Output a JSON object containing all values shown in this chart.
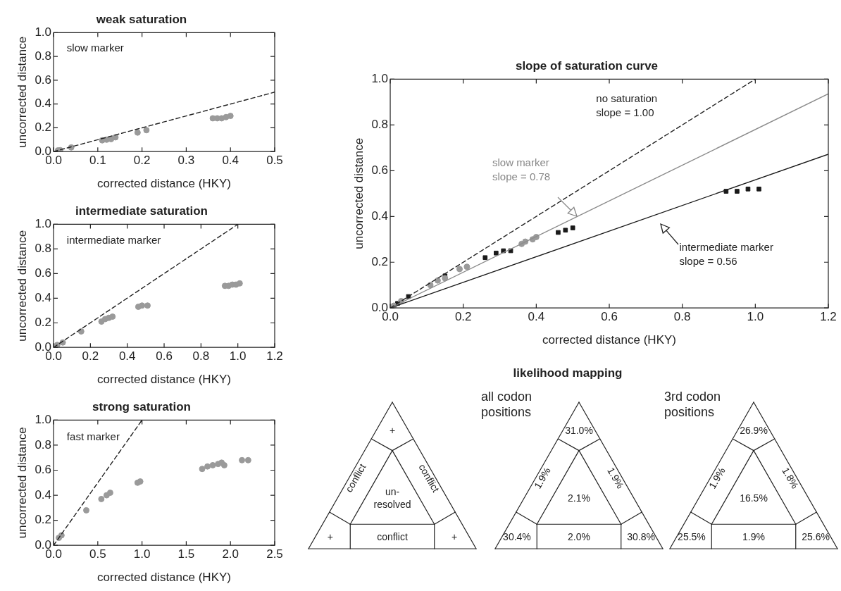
{
  "chart_data": [
    {
      "type": "scatter",
      "title": "weak saturation",
      "xlabel": "corrected distance (HKY)",
      "ylabel": "uncorrected distance",
      "xlim": [
        0,
        0.5
      ],
      "ylim": [
        0,
        1
      ],
      "xticks": [
        {
          "value": 0,
          "label": "0.0"
        },
        {
          "value": 0.1,
          "label": "0.1"
        },
        {
          "value": 0.2,
          "label": "0.2"
        },
        {
          "value": 0.3,
          "label": "0.3"
        },
        {
          "value": 0.4,
          "label": "0.4"
        },
        {
          "value": 0.5,
          "label": "0.5"
        }
      ],
      "yticks": [
        {
          "value": 0,
          "label": "0.0"
        },
        {
          "value": 0.2,
          "label": "0.2"
        },
        {
          "value": 0.4,
          "label": "0.4"
        },
        {
          "value": 0.6,
          "label": "0.6"
        },
        {
          "value": 0.8,
          "label": "0.8"
        },
        {
          "value": 1,
          "label": "1.0"
        }
      ],
      "series": [
        {
          "type": "line",
          "color": "#222222",
          "marker": "none",
          "line_style": "dashed",
          "x": [
            0,
            0.5
          ],
          "values": [
            0,
            0.5
          ]
        },
        {
          "type": "scatter",
          "color": "#9a9a9a",
          "marker": "circle",
          "x": [
            0.01,
            0.015,
            0.04,
            0.11,
            0.12,
            0.13,
            0.14,
            0.19,
            0.21,
            0.36,
            0.37,
            0.38,
            0.39,
            0.4
          ],
          "values": [
            0.01,
            0.012,
            0.035,
            0.095,
            0.1,
            0.105,
            0.12,
            0.16,
            0.18,
            0.28,
            0.28,
            0.28,
            0.29,
            0.3
          ]
        }
      ],
      "annotations": [
        "slow marker"
      ]
    },
    {
      "type": "scatter",
      "title": "intermediate saturation",
      "xlabel": "corrected distance (HKY)",
      "ylabel": "uncorrected distance",
      "xlim": [
        0,
        1.2
      ],
      "ylim": [
        0,
        1
      ],
      "xticks": [
        {
          "value": 0,
          "label": "0.0"
        },
        {
          "value": 0.2,
          "label": "0.2"
        },
        {
          "value": 0.4,
          "label": "0.4"
        },
        {
          "value": 0.6,
          "label": "0.6"
        },
        {
          "value": 0.8,
          "label": "0.8"
        },
        {
          "value": 1,
          "label": "1.0"
        },
        {
          "value": 1.2,
          "label": "1.2"
        }
      ],
      "yticks": [
        {
          "value": 0,
          "label": "0.0"
        },
        {
          "value": 0.2,
          "label": "0.2"
        },
        {
          "value": 0.4,
          "label": "0.4"
        },
        {
          "value": 0.6,
          "label": "0.6"
        },
        {
          "value": 0.8,
          "label": "0.8"
        },
        {
          "value": 1,
          "label": "1.0"
        }
      ],
      "series": [
        {
          "type": "line",
          "color": "#222222",
          "marker": "none",
          "line_style": "dashed",
          "x": [
            0,
            1
          ],
          "values": [
            0,
            1
          ]
        },
        {
          "type": "scatter",
          "color": "#9a9a9a",
          "marker": "circle",
          "x": [
            0.02,
            0.05,
            0.15,
            0.26,
            0.28,
            0.3,
            0.32,
            0.46,
            0.48,
            0.51,
            0.93,
            0.95,
            0.97,
            0.99,
            1.01
          ],
          "values": [
            0.02,
            0.04,
            0.13,
            0.21,
            0.23,
            0.24,
            0.25,
            0.33,
            0.34,
            0.34,
            0.5,
            0.5,
            0.51,
            0.51,
            0.52
          ]
        }
      ],
      "annotations": [
        "intermediate marker"
      ]
    },
    {
      "type": "scatter",
      "title": "strong saturation",
      "xlabel": "corrected distance (HKY)",
      "ylabel": "uncorrected distance",
      "xlim": [
        0,
        2.5
      ],
      "ylim": [
        0,
        1
      ],
      "xticks": [
        {
          "value": 0,
          "label": "0.0"
        },
        {
          "value": 0.5,
          "label": "0.5"
        },
        {
          "value": 1,
          "label": "1.0"
        },
        {
          "value": 1.5,
          "label": "1.5"
        },
        {
          "value": 2,
          "label": "2.0"
        },
        {
          "value": 2.5,
          "label": "2.5"
        }
      ],
      "yticks": [
        {
          "value": 0,
          "label": "0.0"
        },
        {
          "value": 0.2,
          "label": "0.2"
        },
        {
          "value": 0.4,
          "label": "0.4"
        },
        {
          "value": 0.6,
          "label": "0.6"
        },
        {
          "value": 0.8,
          "label": "0.8"
        },
        {
          "value": 1,
          "label": "1.0"
        }
      ],
      "series": [
        {
          "type": "line",
          "color": "#222222",
          "marker": "none",
          "line_style": "dashed",
          "x": [
            0,
            1
          ],
          "values": [
            0,
            1
          ]
        },
        {
          "type": "scatter",
          "color": "#9a9a9a",
          "marker": "circle",
          "x": [
            0.06,
            0.09,
            0.37,
            0.54,
            0.6,
            0.64,
            0.95,
            0.98,
            1.68,
            1.74,
            1.8,
            1.86,
            1.9,
            1.93,
            2.13,
            2.2
          ],
          "values": [
            0.06,
            0.08,
            0.28,
            0.37,
            0.4,
            0.42,
            0.5,
            0.51,
            0.61,
            0.63,
            0.64,
            0.65,
            0.66,
            0.64,
            0.68,
            0.68
          ]
        }
      ],
      "annotations": [
        "fast marker"
      ]
    },
    {
      "type": "scatter",
      "title": "slope of saturation curve",
      "xlabel": "corrected distance (HKY)",
      "ylabel": "uncorrected distance",
      "xlim": [
        0,
        1.2
      ],
      "ylim": [
        0,
        1
      ],
      "xticks": [
        {
          "value": 0,
          "label": "0.0"
        },
        {
          "value": 0.2,
          "label": "0.2"
        },
        {
          "value": 0.4,
          "label": "0.4"
        },
        {
          "value": 0.6,
          "label": "0.6"
        },
        {
          "value": 0.8,
          "label": "0.8"
        },
        {
          "value": 1,
          "label": "1.0"
        },
        {
          "value": 1.2,
          "label": "1.2"
        }
      ],
      "yticks": [
        {
          "value": 0,
          "label": "0.0"
        },
        {
          "value": 0.2,
          "label": "0.2"
        },
        {
          "value": 0.4,
          "label": "0.4"
        },
        {
          "value": 0.6,
          "label": "0.6"
        },
        {
          "value": 0.8,
          "label": "0.8"
        },
        {
          "value": 1,
          "label": "1.0"
        }
      ],
      "series": [
        {
          "type": "line",
          "color": "#222222",
          "marker": "none",
          "line_style": "dashed",
          "x": [
            0,
            1
          ],
          "values": [
            0,
            1
          ]
        },
        {
          "type": "line",
          "color": "#8c8c8c",
          "marker": "none",
          "line_style": "solid",
          "x": [
            0,
            1.2
          ],
          "values": [
            0,
            0.936
          ]
        },
        {
          "type": "line",
          "color": "#1a1a1a",
          "marker": "none",
          "line_style": "solid",
          "x": [
            0,
            1.2
          ],
          "values": [
            0,
            0.672
          ]
        },
        {
          "type": "scatter",
          "color": "#9a9a9a",
          "marker": "circle",
          "x": [
            0.01,
            0.03,
            0.11,
            0.13,
            0.15,
            0.19,
            0.21,
            0.36,
            0.37,
            0.39,
            0.4
          ],
          "values": [
            0.01,
            0.03,
            0.1,
            0.12,
            0.13,
            0.17,
            0.18,
            0.28,
            0.29,
            0.3,
            0.31
          ]
        },
        {
          "type": "scatter",
          "color": "#1a1a1a",
          "marker": "square",
          "x": [
            0.02,
            0.05,
            0.15,
            0.26,
            0.29,
            0.31,
            0.33,
            0.46,
            0.48,
            0.5,
            0.92,
            0.95,
            0.98,
            1.01
          ],
          "values": [
            0.02,
            0.05,
            0.14,
            0.22,
            0.24,
            0.25,
            0.25,
            0.33,
            0.34,
            0.35,
            0.51,
            0.51,
            0.52,
            0.52
          ]
        }
      ],
      "annotations": [
        "no saturation\nslope = 1.00",
        "slow marker\nslope = 0.78",
        "intermediate marker\nslope = 0.56"
      ]
    },
    {
      "type": "other",
      "title": "likelihood mapping"
    },
    {
      "type": "other",
      "annotations": [
        "+",
        "conflict",
        "conflict",
        "un-resolved",
        "+",
        "conflict",
        "+"
      ]
    },
    {
      "type": "other",
      "title": "all codon positions",
      "annotations": [
        "31.0%",
        "1.9%",
        "1.9%",
        "2.1%",
        "30.4%",
        "2.0%",
        "30.8%"
      ]
    },
    {
      "type": "other",
      "title": "3rd codon positions",
      "annotations": [
        "26.9%",
        "1.9%",
        "1.8%",
        "16.5%",
        "25.5%",
        "1.9%",
        "25.6%"
      ]
    }
  ]
}
